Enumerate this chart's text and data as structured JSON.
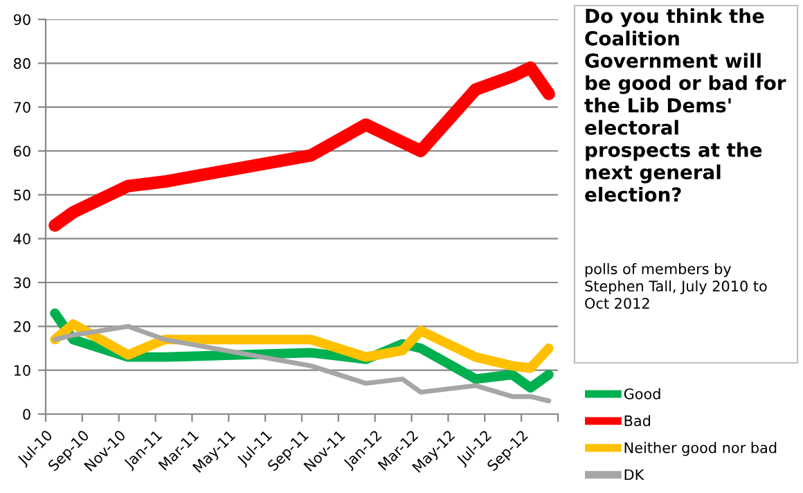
{
  "chart_data": {
    "type": "line",
    "title": "Do you think the Coalition Government will be good or bad for the Lib Dems' electoral prospects at the next general election?",
    "annotations": [
      "polls of members by Stephen Tall, July 2010 to Oct 2012"
    ],
    "x": [
      "2010-07-16",
      "2010-08-16",
      "2010-11-16",
      "2011-01-16",
      "2011-09-16",
      "2011-12-16",
      "2012-02-16",
      "2012-03-16",
      "2012-06-16",
      "2012-08-16",
      "2012-09-16",
      "2012-10-16"
    ],
    "series": [
      {
        "name": "Good",
        "color": "#00b050",
        "values": [
          23,
          17,
          13,
          13,
          14,
          12.5,
          16,
          15,
          8,
          9,
          6,
          9
        ]
      },
      {
        "name": "Bad",
        "color": "#ff0000",
        "values": [
          43,
          46,
          52,
          53,
          59,
          66,
          62,
          60,
          74,
          77,
          79,
          73
        ]
      },
      {
        "name": "Neither good nor bad",
        "color": "#ffc000",
        "values": [
          17,
          20.5,
          13.5,
          17,
          17,
          13,
          14.5,
          19,
          13,
          11,
          10.5,
          15
        ]
      },
      {
        "name": "DK",
        "color": "#a6a6a6",
        "values": [
          17,
          18,
          20,
          17,
          11,
          7,
          8,
          5,
          6.5,
          4,
          4,
          3
        ]
      }
    ],
    "xlim": [
      "2010-07-01",
      "2012-11-01"
    ],
    "xticks": [
      {
        "value": "2010-07-01",
        "label": "Jul-10"
      },
      {
        "value": "2010-09-01",
        "label": "Sep-10"
      },
      {
        "value": "2010-11-01",
        "label": "Nov-10"
      },
      {
        "value": "2011-01-01",
        "label": "Jan-11"
      },
      {
        "value": "2011-03-01",
        "label": "Mar-11"
      },
      {
        "value": "2011-05-01",
        "label": "May-11"
      },
      {
        "value": "2011-07-01",
        "label": "Jul-11"
      },
      {
        "value": "2011-09-01",
        "label": "Sep-11"
      },
      {
        "value": "2011-11-01",
        "label": "Nov-11"
      },
      {
        "value": "2012-01-01",
        "label": "Jan-12"
      },
      {
        "value": "2012-03-01",
        "label": "Mar-12"
      },
      {
        "value": "2012-05-01",
        "label": "May-12"
      },
      {
        "value": "2012-07-01",
        "label": "Jul-12"
      },
      {
        "value": "2012-09-01",
        "label": "Sep-12"
      },
      {
        "value": "2012-11-01",
        "label": null
      }
    ],
    "ylim": [
      0,
      90
    ],
    "yticks": [
      0,
      10,
      20,
      30,
      40,
      50,
      60,
      70,
      80,
      90
    ],
    "grid": "y",
    "legend": "right",
    "marker": "none",
    "line_style": "solid"
  }
}
